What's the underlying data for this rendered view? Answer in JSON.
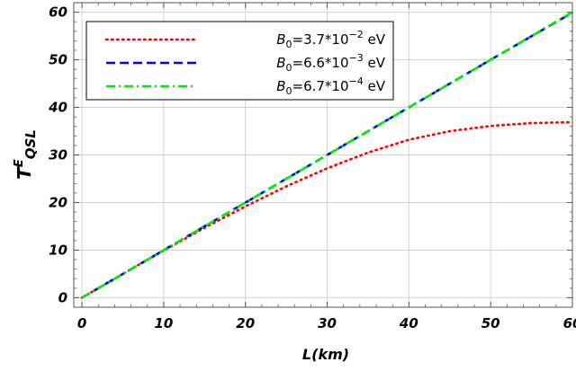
{
  "chart_data": {
    "type": "line",
    "x_label": {
      "main": "L",
      "unit": "(km)"
    },
    "y_label": {
      "main": "T",
      "superscript": "E",
      "subscript": "QSL"
    },
    "xlim": [
      -1,
      60
    ],
    "ylim": [
      -2,
      62
    ],
    "xticks": [
      0,
      10,
      20,
      30,
      40,
      50,
      60
    ],
    "yticks": [
      0,
      10,
      20,
      30,
      40,
      50,
      60
    ],
    "grid": true,
    "legend_position": "top-left",
    "series": [
      {
        "name": "B0=3.7*10^-2 eV",
        "legend": {
          "var": "B",
          "sub": "0",
          "mid": "=3.7*10",
          "sup": "−2",
          "unit": " eV"
        },
        "color": "#ff0000",
        "style": "dotted",
        "x": [
          0,
          5,
          10,
          15,
          20,
          25,
          30,
          35,
          40,
          45,
          50,
          55,
          60
        ],
        "y": [
          0,
          5.0,
          9.9,
          14.7,
          19.2,
          23.4,
          27.2,
          30.5,
          33.2,
          35.0,
          36.1,
          36.7,
          36.9
        ]
      },
      {
        "name": "B0=6.6*10^-3 eV",
        "legend": {
          "var": "B",
          "sub": "0",
          "mid": "=6.6*10",
          "sup": "−3",
          "unit": " eV"
        },
        "color": "#0000ff",
        "style": "dashed",
        "x": [
          0,
          10,
          20,
          30,
          40,
          50,
          60
        ],
        "y": [
          0,
          10,
          20,
          30,
          40,
          50,
          59.9
        ]
      },
      {
        "name": "B0=6.7*10^-4 eV",
        "legend": {
          "var": "B",
          "sub": "0",
          "mid": "=6.7*10",
          "sup": "−4",
          "unit": " eV"
        },
        "color": "#00ee00",
        "style": "dashdot",
        "x": [
          0,
          10,
          20,
          30,
          40,
          50,
          60
        ],
        "y": [
          0,
          10,
          20,
          30,
          40,
          50,
          60
        ]
      }
    ]
  }
}
